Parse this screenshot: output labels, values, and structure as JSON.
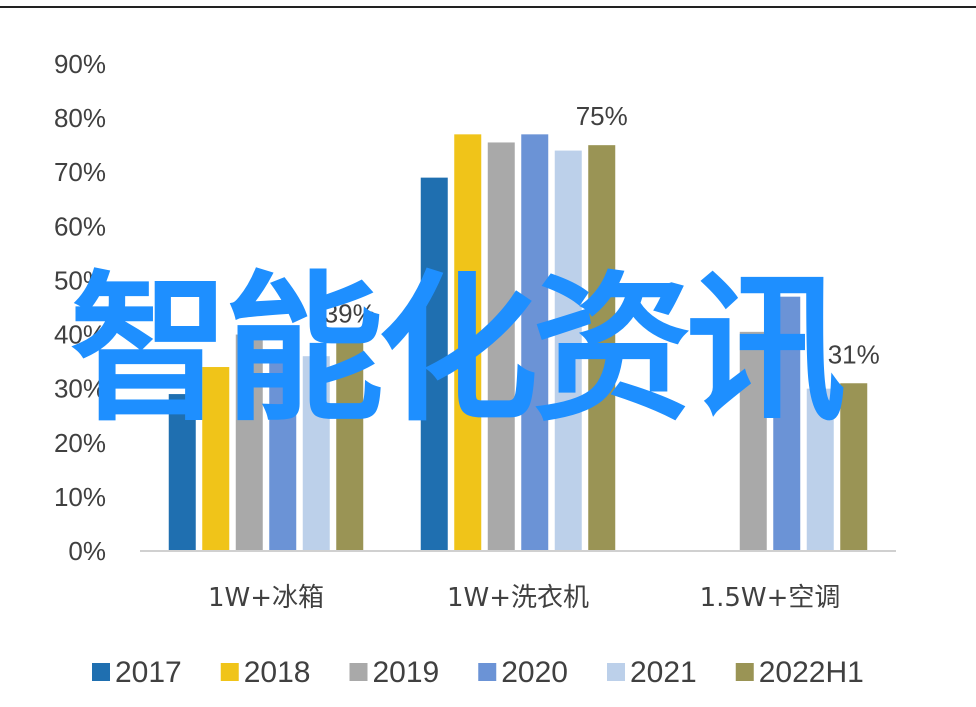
{
  "chart_data": {
    "type": "bar",
    "categories": [
      "1W+冰箱",
      "1W+洗衣机",
      "1.5W+空调"
    ],
    "series": [
      {
        "name": "2017",
        "color": "#1f6fb0",
        "values": [
          29,
          69,
          null
        ]
      },
      {
        "name": "2018",
        "color": "#f0c419",
        "values": [
          34,
          77,
          null
        ]
      },
      {
        "name": "2019",
        "color": "#a9a9a9",
        "values": [
          40,
          75.5,
          40.5
        ]
      },
      {
        "name": "2020",
        "color": "#6b93d6",
        "values": [
          37,
          77,
          47
        ]
      },
      {
        "name": "2021",
        "color": "#bcd0ea",
        "values": [
          36,
          74,
          30
        ]
      },
      {
        "name": "2022H1",
        "color": "#9a9455",
        "values": [
          38.5,
          75,
          31
        ]
      }
    ],
    "data_labels": [
      {
        "category": 0,
        "series": 5,
        "text": "39%"
      },
      {
        "category": 1,
        "series": 5,
        "text": "75%"
      },
      {
        "category": 2,
        "series": 5,
        "text": "31%"
      }
    ],
    "yticks": [
      "0%",
      "10%",
      "20%",
      "30%",
      "40%",
      "50%",
      "60%",
      "70%",
      "80%",
      "90%"
    ],
    "ylim": [
      0,
      90
    ],
    "legend_position": "bottom",
    "grid": false
  },
  "watermark": "智能化资讯"
}
